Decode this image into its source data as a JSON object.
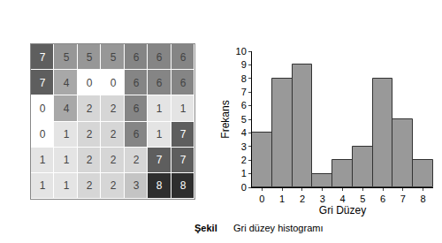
{
  "chart_data": [
    {
      "type": "heatmap",
      "cells": [
        [
          7,
          5,
          5,
          5,
          6,
          6,
          6
        ],
        [
          7,
          4,
          0,
          0,
          6,
          6,
          6
        ],
        [
          0,
          4,
          2,
          2,
          6,
          1,
          1
        ],
        [
          0,
          1,
          2,
          2,
          6,
          1,
          7
        ],
        [
          1,
          1,
          2,
          2,
          2,
          7,
          7
        ],
        [
          1,
          1,
          2,
          2,
          3,
          8,
          8
        ]
      ],
      "data_labels": true,
      "tick_labels": false
    },
    {
      "type": "bar",
      "categories": [
        "0",
        "1",
        "2",
        "3",
        "4",
        "5",
        "6",
        "7",
        "8"
      ],
      "values": [
        4,
        8,
        9,
        1,
        2,
        3,
        8,
        5,
        2
      ],
      "color": "#999999",
      "xlabel": "Gri Düzey",
      "ylabel": "Frekans",
      "ylim": [
        0,
        10
      ],
      "yticks": [
        0,
        1,
        2,
        3,
        4,
        5,
        6,
        7,
        8,
        9,
        10
      ],
      "grid": false
    }
  ],
  "caption": {
    "label": "Şekil",
    "text": "Gri düzey histogramı"
  }
}
